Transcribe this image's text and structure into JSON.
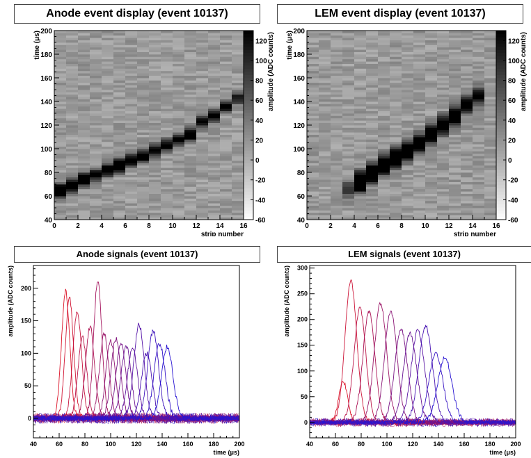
{
  "chart_data": [
    {
      "type": "heatmap",
      "title": "Anode event display (event 10137)",
      "xlabel": "strip number",
      "ylabel": "time (μs)",
      "colorbar_label": "amplitude (ADC counts)",
      "xlim": [
        0,
        16
      ],
      "ylim": [
        40,
        200
      ],
      "xticks": [
        0,
        2,
        4,
        6,
        8,
        10,
        12,
        14,
        16
      ],
      "yticks": [
        40,
        60,
        80,
        100,
        120,
        140,
        160,
        180,
        200
      ],
      "colorbar_ticks": [
        -60,
        -40,
        -20,
        0,
        20,
        40,
        60,
        80,
        100,
        120
      ],
      "colorbar_range": [
        -60,
        130
      ],
      "track": {
        "strips": [
          0,
          1,
          2,
          3,
          4,
          5,
          6,
          7,
          8,
          9,
          10,
          11,
          12,
          13,
          14,
          15
        ],
        "time_us": [
          65,
          69,
          74,
          78,
          82,
          86,
          90,
          94,
          99,
          103,
          108,
          112,
          123,
          128,
          136,
          143
        ],
        "peak_amplitude": [
          195,
          185,
          165,
          125,
          140,
          210,
          150,
          140,
          135,
          130,
          125,
          145,
          120,
          120,
          115,
          110
        ]
      }
    },
    {
      "type": "heatmap",
      "title": "LEM event display (event 10137)",
      "xlabel": "strip number",
      "ylabel": "time (μs)",
      "colorbar_label": "amplitude (ADC counts)",
      "xlim": [
        0,
        16
      ],
      "ylim": [
        40,
        200
      ],
      "xticks": [
        0,
        2,
        4,
        6,
        8,
        10,
        12,
        14,
        16
      ],
      "yticks": [
        40,
        60,
        80,
        100,
        120,
        140,
        160,
        180,
        200
      ],
      "colorbar_ticks": [
        -60,
        -40,
        -20,
        0,
        20,
        40,
        60,
        80,
        100,
        120
      ],
      "colorbar_range": [
        -60,
        130
      ],
      "track": {
        "strips": [
          3,
          4,
          5,
          6,
          7,
          8,
          9,
          10,
          11,
          12,
          13,
          14
        ],
        "time_us": [
          66,
          72,
          79,
          86,
          92,
          98,
          105,
          112,
          120,
          128,
          137,
          145
        ],
        "peak_amplitude": [
          80,
          275,
          220,
          215,
          230,
          215,
          180,
          170,
          175,
          185,
          135,
          120
        ]
      }
    },
    {
      "type": "line",
      "title": "Anode signals (event 10137)",
      "xlabel": "time (μs)",
      "ylabel": "amplitude (ADC counts)",
      "xlim": [
        40,
        200
      ],
      "ylim": [
        -30,
        235
      ],
      "xticks": [
        40,
        60,
        80,
        100,
        120,
        140,
        160,
        180,
        200
      ],
      "yticks": [
        0,
        50,
        100,
        150,
        200
      ],
      "series": [
        {
          "peak_time": 65,
          "peak": 195,
          "width": 3.2
        },
        {
          "peak_time": 68,
          "peak": 185,
          "width": 3.2
        },
        {
          "peak_time": 74,
          "peak": 165,
          "width": 3.4
        },
        {
          "peak_time": 78,
          "peak": 125,
          "width": 3.4
        },
        {
          "peak_time": 84,
          "peak": 140,
          "width": 3.5
        },
        {
          "peak_time": 90,
          "peak": 212,
          "width": 3.2
        },
        {
          "peak_time": 95,
          "peak": 130,
          "width": 3.6
        },
        {
          "peak_time": 100,
          "peak": 120,
          "width": 3.6
        },
        {
          "peak_time": 104,
          "peak": 122,
          "width": 3.7
        },
        {
          "peak_time": 108,
          "peak": 115,
          "width": 3.8
        },
        {
          "peak_time": 112,
          "peak": 112,
          "width": 3.8
        },
        {
          "peak_time": 117,
          "peak": 108,
          "width": 3.9
        },
        {
          "peak_time": 122,
          "peak": 145,
          "width": 4.0
        },
        {
          "peak_time": 128,
          "peak": 100,
          "width": 4.1
        },
        {
          "peak_time": 133,
          "peak": 135,
          "width": 4.2
        },
        {
          "peak_time": 138,
          "peak": 115,
          "width": 4.3
        },
        {
          "peak_time": 144,
          "peak": 110,
          "width": 4.4
        }
      ]
    },
    {
      "type": "line",
      "title": "LEM signals (event 10137)",
      "xlabel": "time (μs)",
      "ylabel": "amplitude (ADC counts)",
      "xlim": [
        40,
        200
      ],
      "ylim": [
        -30,
        305
      ],
      "xticks": [
        40,
        60,
        80,
        100,
        120,
        140,
        160,
        180,
        200
      ],
      "yticks": [
        0,
        50,
        100,
        150,
        200,
        250,
        300
      ],
      "series": [
        {
          "peak_time": 66,
          "peak": 80,
          "width": 3.5
        },
        {
          "peak_time": 72,
          "peak": 275,
          "width": 4.6
        },
        {
          "peak_time": 79,
          "peak": 222,
          "width": 4.6
        },
        {
          "peak_time": 86,
          "peak": 215,
          "width": 4.7
        },
        {
          "peak_time": 95,
          "peak": 232,
          "width": 4.8
        },
        {
          "peak_time": 103,
          "peak": 215,
          "width": 4.9
        },
        {
          "peak_time": 111,
          "peak": 180,
          "width": 5.0
        },
        {
          "peak_time": 118,
          "peak": 173,
          "width": 5.1
        },
        {
          "peak_time": 124,
          "peak": 178,
          "width": 5.2
        },
        {
          "peak_time": 130,
          "peak": 187,
          "width": 5.3
        },
        {
          "peak_time": 138,
          "peak": 135,
          "width": 5.4
        },
        {
          "peak_time": 145,
          "peak": 125,
          "width": 5.6
        }
      ]
    }
  ]
}
